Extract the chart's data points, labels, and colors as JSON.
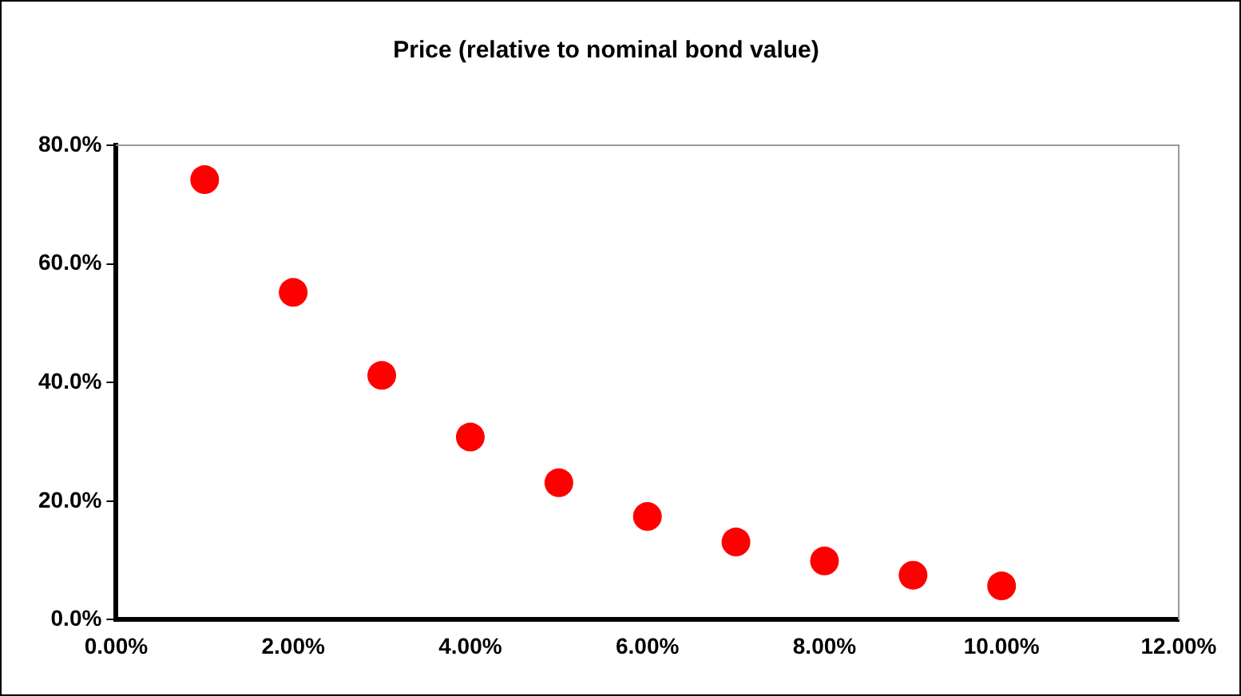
{
  "chart_data": {
    "type": "scatter",
    "title": "Price (relative to nominal bond value)",
    "x": [
      1,
      2,
      3,
      4,
      5,
      6,
      7,
      8,
      9,
      10
    ],
    "series": [
      {
        "color": "#ff0000",
        "values": [
          74.2,
          55.2,
          41.2,
          30.8,
          23.1,
          17.4,
          13.1,
          9.9,
          7.5,
          5.7
        ]
      }
    ],
    "xlim": [
      0,
      12
    ],
    "xticks": [
      {
        "value": 0,
        "label": "0.00%"
      },
      {
        "value": 2,
        "label": "2.00%"
      },
      {
        "value": 4,
        "label": "4.00%"
      },
      {
        "value": 6,
        "label": "6.00%"
      },
      {
        "value": 8,
        "label": "8.00%"
      },
      {
        "value": 10,
        "label": "10.00%"
      },
      {
        "value": 12,
        "label": "12.00%"
      }
    ],
    "ylim": [
      0,
      80
    ],
    "yticks": [
      {
        "value": 0,
        "label": "0.0%"
      },
      {
        "value": 20,
        "label": "20.0%"
      },
      {
        "value": 40,
        "label": "40.0%"
      },
      {
        "value": 60,
        "label": "60.0%"
      },
      {
        "value": 80,
        "label": "80.0%"
      }
    ],
    "grid": false,
    "legend": false,
    "marker": "circle"
  }
}
